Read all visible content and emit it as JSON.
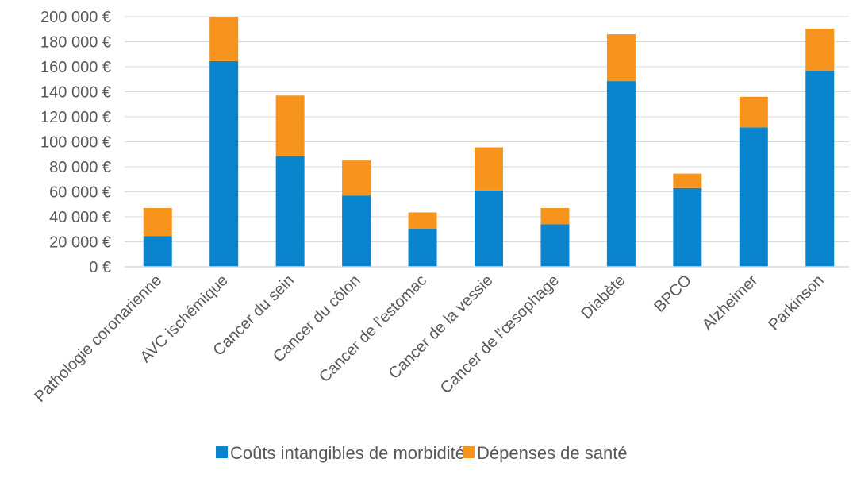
{
  "chart_data": {
    "type": "bar",
    "stacked": true,
    "categories": [
      "Pathologie coronarienne",
      "AVC ischémique",
      "Cancer du sein",
      "Cancer du côlon",
      "Cancer de l'estomac",
      "Cancer de la vessie",
      "Cancer de l'œsophage",
      "Diabète",
      "BPCO",
      "Alzheimer",
      "Parkinson"
    ],
    "series": [
      {
        "name": "Coûts intangibles de morbidité",
        "color": "#0a84cc",
        "values": [
          24500,
          164500,
          88500,
          57000,
          30500,
          61000,
          34000,
          148500,
          63000,
          111500,
          157000
        ]
      },
      {
        "name": "Dépenses de santé",
        "color": "#f7941d",
        "values": [
          22500,
          35500,
          48500,
          28000,
          13000,
          34500,
          13000,
          37500,
          11500,
          24500,
          33500
        ]
      }
    ],
    "ylim": [
      0,
      200000
    ],
    "yticks": [
      0,
      20000,
      40000,
      60000,
      80000,
      100000,
      120000,
      140000,
      160000,
      180000,
      200000
    ],
    "ytick_labels": [
      "0 €",
      "20 000 €",
      "40 000 €",
      "60 000 €",
      "80 000 €",
      "100 000 €",
      "120 000 €",
      "140 000 €",
      "160 000 €",
      "180 000 €",
      "200 000 €"
    ],
    "grid": true,
    "legend_position": "bottom"
  }
}
